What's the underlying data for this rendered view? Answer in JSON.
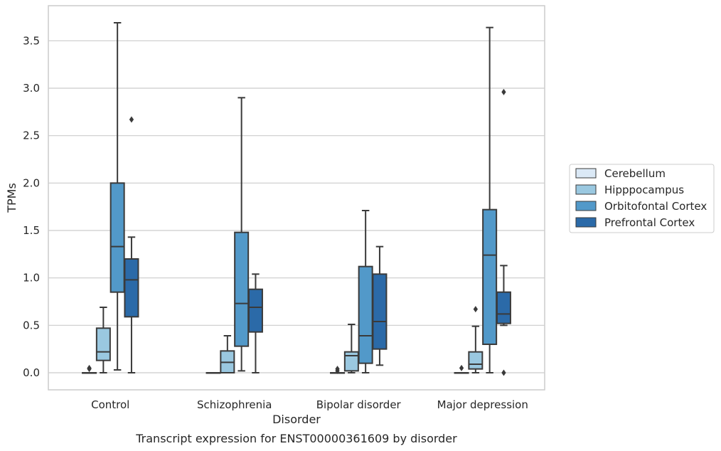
{
  "caption": "Transcript expression for ENST00000361609 by disorder",
  "chart_data": {
    "type": "box",
    "xlabel": "Disorder",
    "ylabel": "TPMs",
    "ylim": [
      -0.18,
      3.87
    ],
    "yticks": [
      "0.0",
      "0.5",
      "1.0",
      "1.5",
      "2.0",
      "2.5",
      "3.0",
      "3.5"
    ],
    "ytick_values": [
      0,
      0.5,
      1,
      1.5,
      2,
      2.5,
      3,
      3.5
    ],
    "grid": "horizontal",
    "legend_position": "right",
    "categories": [
      "Control",
      "Schizophrenia",
      "Bipolar disorder",
      "Major depression"
    ],
    "series": [
      {
        "name": "Cerebellum",
        "color": "#dbe9f6",
        "boxes": [
          {
            "whislo": 0,
            "q1": 0,
            "med": 0,
            "q3": 0,
            "whishi": 0,
            "fliers": [
              0.04,
              0.05
            ]
          },
          {
            "whislo": 0,
            "q1": 0,
            "med": 0,
            "q3": 0,
            "whishi": 0,
            "fliers": []
          },
          {
            "whislo": 0,
            "q1": 0,
            "med": 0,
            "q3": 0,
            "whishi": 0,
            "fliers": [
              0.02,
              0.04
            ]
          },
          {
            "whislo": 0,
            "q1": 0,
            "med": 0,
            "q3": 0,
            "whishi": 0,
            "fliers": [
              0.05
            ]
          }
        ]
      },
      {
        "name": "Hipppocampus",
        "color": "#9ac8e0",
        "boxes": [
          {
            "whislo": 0,
            "q1": 0.13,
            "med": 0.22,
            "q3": 0.47,
            "whishi": 0.69,
            "fliers": []
          },
          {
            "whislo": 0,
            "q1": 0,
            "med": 0.11,
            "q3": 0.23,
            "whishi": 0.39,
            "fliers": []
          },
          {
            "whislo": 0,
            "q1": 0.02,
            "med": 0.18,
            "q3": 0.22,
            "whishi": 0.51,
            "fliers": []
          },
          {
            "whislo": 0,
            "q1": 0.04,
            "med": 0.09,
            "q3": 0.22,
            "whishi": 0.49,
            "fliers": [
              0.67
            ]
          }
        ]
      },
      {
        "name": "Orbitofontal Cortex",
        "color": "#5299c9",
        "boxes": [
          {
            "whislo": 0.03,
            "q1": 0.85,
            "med": 1.33,
            "q3": 2.0,
            "whishi": 3.69,
            "fliers": []
          },
          {
            "whislo": 0.02,
            "q1": 0.28,
            "med": 0.73,
            "q3": 1.48,
            "whishi": 2.9,
            "fliers": []
          },
          {
            "whislo": 0,
            "q1": 0.1,
            "med": 0.39,
            "q3": 1.12,
            "whishi": 1.71,
            "fliers": []
          },
          {
            "whislo": 0,
            "q1": 0.3,
            "med": 1.24,
            "q3": 1.72,
            "whishi": 3.64,
            "fliers": []
          }
        ]
      },
      {
        "name": "Prefrontal Cortex",
        "color": "#2b6aa8",
        "boxes": [
          {
            "whislo": 0,
            "q1": 0.59,
            "med": 0.98,
            "q3": 1.2,
            "whishi": 1.43,
            "fliers": [
              2.67
            ]
          },
          {
            "whislo": 0,
            "q1": 0.43,
            "med": 0.69,
            "q3": 0.88,
            "whishi": 1.04,
            "fliers": []
          },
          {
            "whislo": 0.08,
            "q1": 0.25,
            "med": 0.54,
            "q3": 1.04,
            "whishi": 1.33,
            "fliers": []
          },
          {
            "whislo": 0.5,
            "q1": 0.52,
            "med": 0.62,
            "q3": 0.85,
            "whishi": 1.13,
            "fliers": [
              2.96,
              0
            ]
          }
        ]
      }
    ]
  }
}
